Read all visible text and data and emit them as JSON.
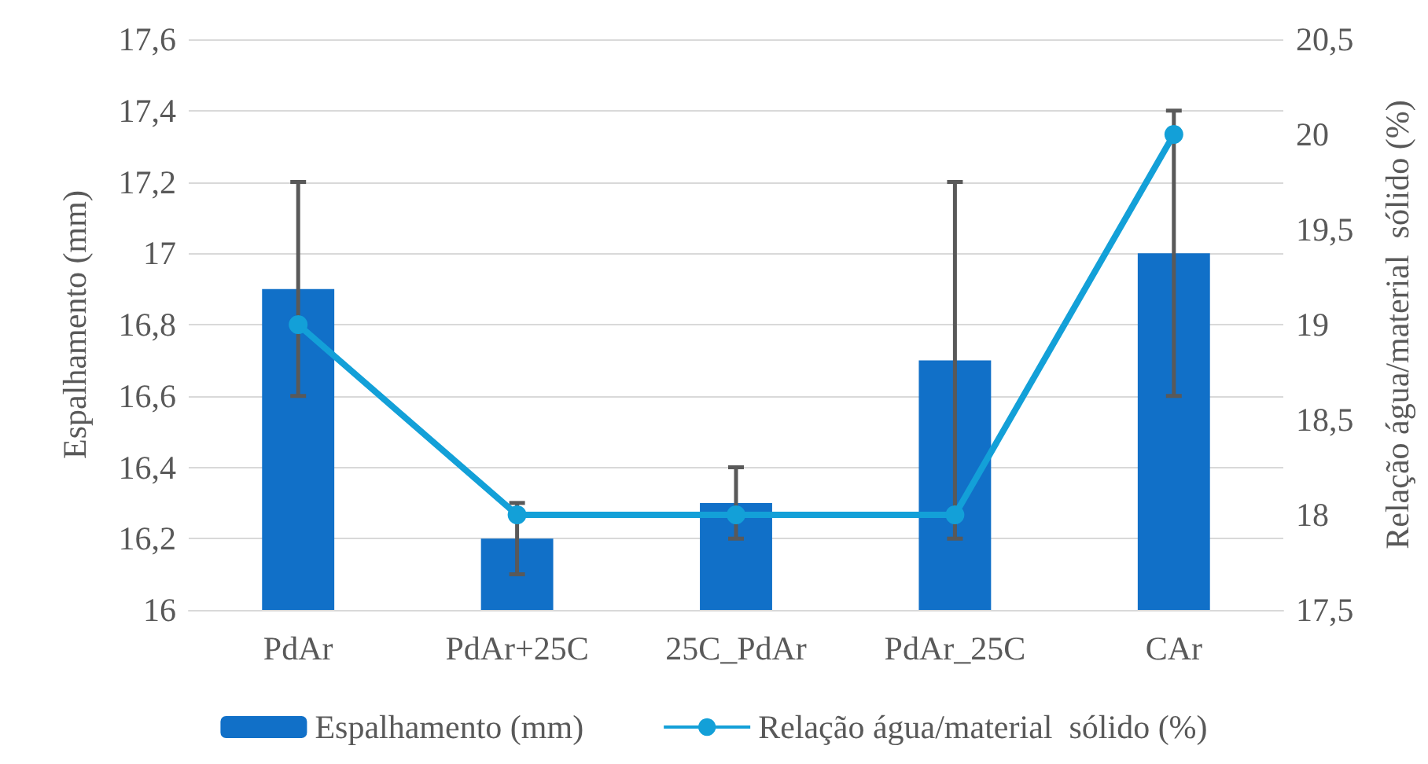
{
  "chart_data": {
    "type": "bar",
    "ylabel": "Espalhamento (mm)",
    "y2label": "Relação água/material  sólido (%)",
    "categories": [
      "PdAr",
      "PdAr+25C",
      "25C_PdAr",
      "PdAr_25C",
      "CAr"
    ],
    "series": [
      {
        "name": "Espalhamento (mm)",
        "color": "#1170c8",
        "values": [
          16.9,
          16.2,
          16.3,
          16.7,
          17.0
        ],
        "errors": [
          [
            16.6,
            17.2
          ],
          [
            16.1,
            16.3
          ],
          [
            16.2,
            16.4
          ],
          [
            16.2,
            17.2
          ],
          [
            16.6,
            17.4
          ]
        ]
      },
      {
        "name": "Relação água/material  sólido (%)",
        "type": "line",
        "axis": "y2",
        "color": "#13a0d8",
        "marker": "circle",
        "values": [
          19,
          18,
          18,
          18,
          20
        ]
      }
    ],
    "ylim": [
      16,
      17.6
    ],
    "yticks": [
      16,
      {
        "value": 16.2,
        "label": "16,2"
      },
      {
        "value": 16.4,
        "label": "16,4"
      },
      {
        "value": 16.6,
        "label": "16,6"
      },
      {
        "value": 16.8,
        "label": "16,8"
      },
      17,
      {
        "value": 17.2,
        "label": "17,2"
      },
      {
        "value": 17.4,
        "label": "17,4"
      },
      {
        "value": 17.6,
        "label": "17,6"
      }
    ],
    "y2lim": [
      17.5,
      20.5
    ],
    "y2ticks": [
      {
        "value": 17.5,
        "label": "17,5"
      },
      18,
      {
        "value": 18.5,
        "label": "18,5"
      },
      19,
      {
        "value": 19.5,
        "label": "19,5"
      },
      20,
      {
        "value": 20.5,
        "label": "20,5"
      }
    ],
    "grid": "y",
    "legend": "bottom"
  }
}
